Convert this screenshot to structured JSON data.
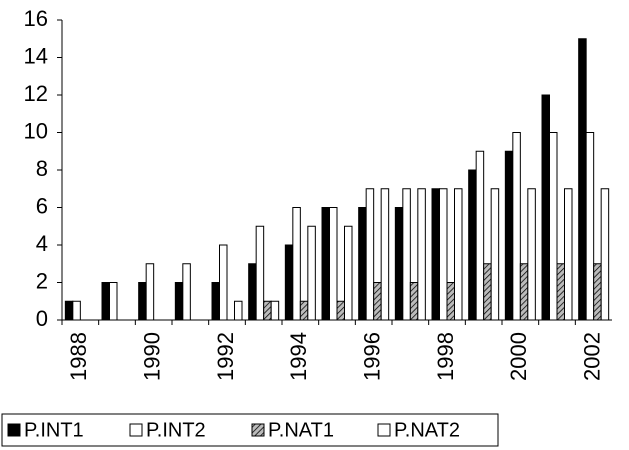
{
  "chart_data": {
    "type": "bar",
    "categories": [
      "1988",
      null,
      "1990",
      null,
      "1992",
      null,
      "1994",
      null,
      "1996",
      null,
      "1998",
      null,
      "2000",
      null,
      "2002"
    ],
    "series": [
      {
        "name": "P.INT1",
        "color": "#000000",
        "values": [
          1,
          2,
          2,
          2,
          2,
          3,
          4,
          6,
          6,
          6,
          7,
          8,
          9,
          12,
          15
        ]
      },
      {
        "name": "P.INT2",
        "color": "#ffffff",
        "values": [
          1,
          2,
          3,
          3,
          4,
          5,
          6,
          6,
          7,
          7,
          7,
          9,
          10,
          10,
          10
        ]
      },
      {
        "name": "P.NAT1",
        "color": "#808080",
        "pattern": "hatch",
        "values": [
          0,
          0,
          0,
          0,
          0,
          1,
          1,
          1,
          2,
          2,
          2,
          3,
          3,
          3,
          3
        ]
      },
      {
        "name": "P.NAT2",
        "color": "#ffffff",
        "values": [
          0,
          0,
          0,
          0,
          1,
          1,
          5,
          5,
          7,
          7,
          7,
          7,
          7,
          7,
          7
        ]
      }
    ],
    "ylim": [
      0,
      16
    ],
    "yticks": [
      0,
      2,
      4,
      6,
      8,
      10,
      12,
      14,
      16
    ],
    "grid": false
  }
}
